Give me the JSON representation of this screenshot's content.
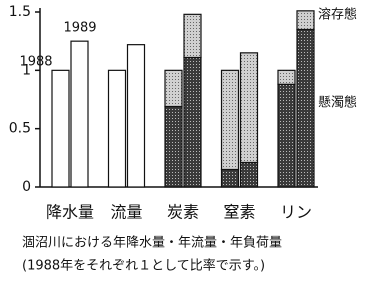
{
  "chart_data": {
    "type": "stacked-grouped-bar",
    "categories": [
      "降水量",
      "流量",
      "炭素",
      "窒素",
      "リン"
    ],
    "stacks": [
      "1988",
      "1989"
    ],
    "series": [
      {
        "name": "懸濁態",
        "color": "#3a3a3a",
        "values": [
          [
            null,
            null
          ],
          [
            null,
            null
          ],
          [
            0.69,
            1.11
          ],
          [
            0.15,
            0.21
          ],
          [
            0.88,
            1.35
          ]
        ]
      },
      {
        "name": "溶存態",
        "color": "#d0d0d0",
        "values": [
          [
            null,
            null
          ],
          [
            null,
            null
          ],
          [
            0.31,
            0.37
          ],
          [
            0.85,
            0.94
          ],
          [
            0.12,
            0.16
          ]
        ]
      },
      {
        "color": "#ffffff",
        "values": [
          [
            1.0,
            1.25
          ],
          [
            1.0,
            1.22
          ],
          [
            null,
            null
          ],
          [
            null,
            null
          ],
          [
            null,
            null
          ]
        ]
      }
    ],
    "ylim": [
      0,
      1.5
    ],
    "yticks": [
      0,
      0.5,
      1,
      1.5
    ],
    "caption": [
      "涸沼川における年降水量・年流量・年負荷量",
      "(1988年をそれぞれ１として比率で示す。)"
    ]
  }
}
